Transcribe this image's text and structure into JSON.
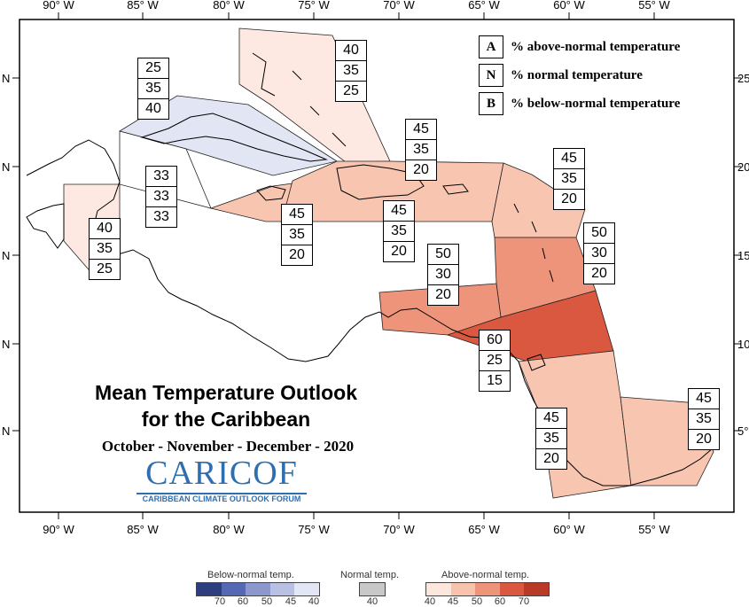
{
  "title_line1": "Mean Temperature Outlook",
  "title_line2": "for the Caribbean",
  "subtitle": "October - November - December - 2020",
  "logo": {
    "main": "CARICOF",
    "sub": "CARIBBEAN CLIMATE OUTLOOK FORUM"
  },
  "axes": {
    "bottom": [
      "90° W",
      "85° W",
      "80° W",
      "75° W",
      "70° W",
      "65° W",
      "60° W",
      "55° W"
    ],
    "top": [
      "90° W",
      "85° W",
      "80° W",
      "75° W",
      "70° W",
      "65° W",
      "60° W",
      "55° W"
    ],
    "left": [
      "N",
      "N",
      "N",
      "N",
      "N"
    ],
    "right": [
      "25",
      "20",
      "15",
      "10",
      "5°"
    ]
  },
  "legend": [
    {
      "key": "A",
      "text": "% above-normal temperature"
    },
    {
      "key": "N",
      "text": "% normal temperature"
    },
    {
      "key": "B",
      "text": "% below-normal temperature"
    }
  ],
  "regions": [
    {
      "name": "bahamas",
      "A": "40",
      "N": "35",
      "B": "25",
      "color": "#fde9e1"
    },
    {
      "name": "cuba",
      "A": "25",
      "N": "35",
      "B": "40",
      "color": "#e2e6f4"
    },
    {
      "name": "cayman",
      "A": "33",
      "N": "33",
      "B": "33",
      "color": "#ffffff"
    },
    {
      "name": "belize",
      "A": "40",
      "N": "35",
      "B": "25",
      "color": "#fde9e1"
    },
    {
      "name": "jamaica",
      "A": "45",
      "N": "35",
      "B": "20",
      "color": "#f8c5b1"
    },
    {
      "name": "hispaniola",
      "A": "45",
      "N": "35",
      "B": "20",
      "color": "#f8c5b1"
    },
    {
      "name": "puerto-rico",
      "A": "45",
      "N": "35",
      "B": "20",
      "color": "#f8c5b1"
    },
    {
      "name": "leeward-islands",
      "A": "45",
      "N": "35",
      "B": "20",
      "color": "#f8c5b1"
    },
    {
      "name": "windward-islands",
      "A": "50",
      "N": "30",
      "B": "20",
      "color": "#ee947a"
    },
    {
      "name": "abc-islands",
      "A": "50",
      "N": "30",
      "B": "20",
      "color": "#ee947a"
    },
    {
      "name": "trinidad",
      "A": "60",
      "N": "25",
      "B": "15",
      "color": "#d9583f"
    },
    {
      "name": "guyana",
      "A": "45",
      "N": "35",
      "B": "20",
      "color": "#f8c5b1"
    },
    {
      "name": "suriname-guiana",
      "A": "45",
      "N": "35",
      "B": "20",
      "color": "#f8c5b1"
    }
  ],
  "colorbar": {
    "below_label": "Below-normal temp.",
    "normal_label": "Normal temp.",
    "above_label": "Above-normal temp.",
    "below_colors": [
      "#2c3e7e",
      "#5468b4",
      "#8c97cd",
      "#b9c0e3",
      "#e3e6f5"
    ],
    "normal_color": "#c8c8c8",
    "above_colors": [
      "#fde6dc",
      "#f8c3ad",
      "#ee947a",
      "#d9583f",
      "#b93a27"
    ],
    "below_values": [
      "70",
      "60",
      "50",
      "45",
      "40"
    ],
    "normal_values": [
      "40"
    ],
    "above_values": [
      "40",
      "45",
      "50",
      "60",
      "70"
    ]
  }
}
